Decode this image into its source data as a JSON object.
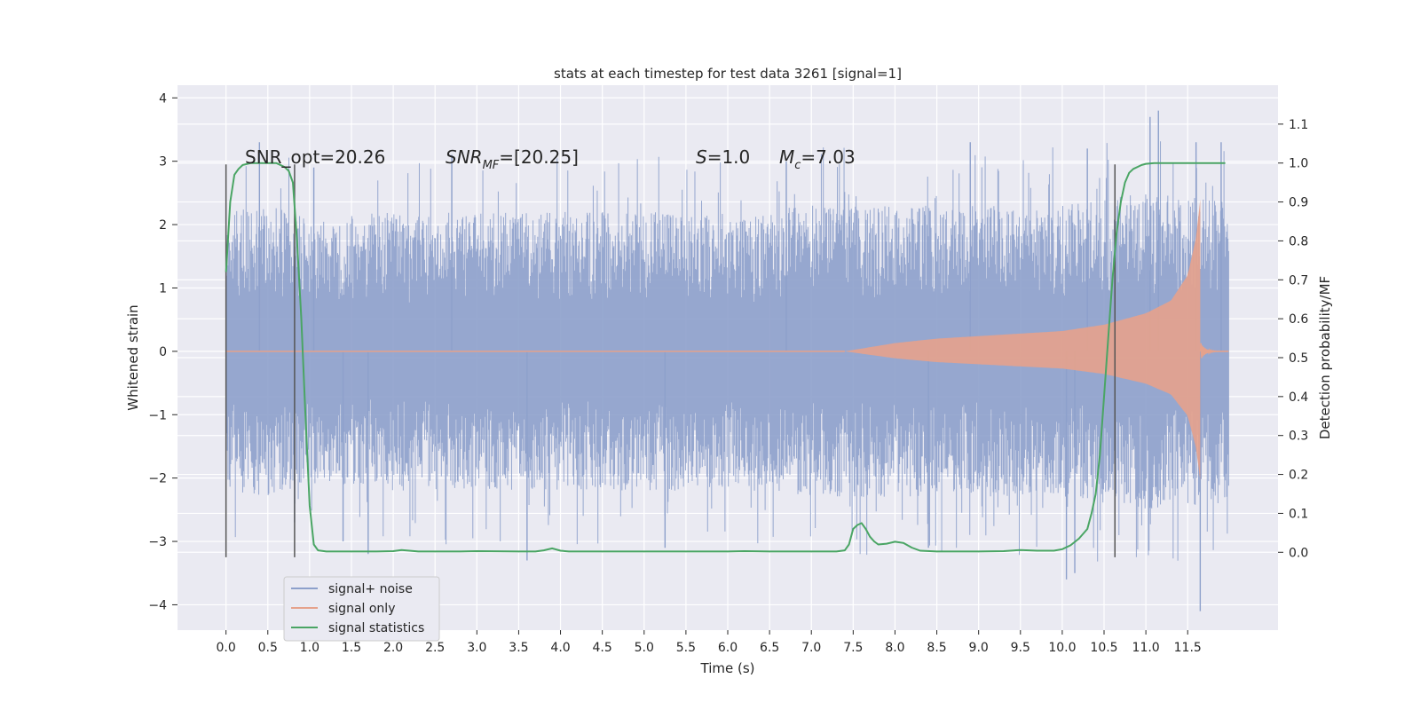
{
  "chart_data": {
    "type": "line",
    "title": "stats at each timestep for test data 3261 [signal=1]",
    "xlabel": "Time (s)",
    "ylabel": "Whitened strain",
    "y2label": "Detection probability/MF",
    "xlim": [
      -0.58,
      12.58
    ],
    "ylim": [
      -4.4,
      4.2
    ],
    "y2lim": [
      -0.2,
      1.2
    ],
    "grid": true,
    "legend_position": "lower-left",
    "x_ticks": [
      "0.0",
      "0.5",
      "1.0",
      "1.5",
      "2.0",
      "2.5",
      "3.0",
      "3.5",
      "4.0",
      "4.5",
      "5.0",
      "5.5",
      "6.0",
      "6.5",
      "7.0",
      "7.5",
      "8.0",
      "8.5",
      "9.0",
      "9.5",
      "10.0",
      "10.5",
      "11.0",
      "11.5"
    ],
    "y_ticks": [
      "4",
      "3",
      "2",
      "1",
      "0",
      "−1",
      "−2",
      "−3",
      "−4"
    ],
    "y_tick_values": [
      4,
      3,
      2,
      1,
      0,
      -1,
      -2,
      -3,
      -4
    ],
    "y2_ticks": [
      "1.1",
      "1.0",
      "0.9",
      "0.8",
      "0.7",
      "0.6",
      "0.5",
      "0.4",
      "0.3",
      "0.2",
      "0.1",
      "0.0"
    ],
    "y2_tick_values": [
      1.1,
      1.0,
      0.9,
      0.8,
      0.7,
      0.6,
      0.5,
      0.4,
      0.3,
      0.2,
      0.1,
      0.0
    ],
    "annotations": {
      "snr_opt": "SNR_opt=20.26",
      "snr_mf_pre": "SNR",
      "snr_mf_sub": "MF",
      "snr_mf_post": "=[20.25]",
      "s_sym": "S",
      "s_val": "=1.0",
      "mc_sym": "M",
      "mc_sub": "c",
      "mc_val": "=7.03"
    },
    "vertical_markers": [
      0.0,
      0.82,
      10.63
    ],
    "series": [
      {
        "name": "signal+ noise",
        "color": "#8da0cb",
        "kind": "noise",
        "x_range": [
          0.0,
          11.99
        ],
        "envelope": [
          [
            0.0,
            2.2
          ],
          [
            0.5,
            2.3
          ],
          [
            1.0,
            2.1
          ],
          [
            2.0,
            2.2
          ],
          [
            3.0,
            2.2
          ],
          [
            4.0,
            2.2
          ],
          [
            5.0,
            2.2
          ],
          [
            6.0,
            2.2
          ],
          [
            7.0,
            2.3
          ],
          [
            8.0,
            2.3
          ],
          [
            9.0,
            2.3
          ],
          [
            10.0,
            2.3
          ],
          [
            11.0,
            2.5
          ],
          [
            11.99,
            2.4
          ]
        ],
        "peaks": [
          [
            0.4,
            3.3
          ],
          [
            1.05,
            2.9
          ],
          [
            2.7,
            3.1
          ],
          [
            6.7,
            3.0
          ],
          [
            8.9,
            3.3
          ],
          [
            10.3,
            3.2
          ],
          [
            11.05,
            3.7
          ],
          [
            11.15,
            3.8
          ],
          [
            11.6,
            3.3
          ],
          [
            11.9,
            3.3
          ]
        ],
        "troughs": [
          [
            0.82,
            -2.7
          ],
          [
            1.4,
            -3.0
          ],
          [
            1.7,
            -3.2
          ],
          [
            3.6,
            -3.3
          ],
          [
            5.25,
            -3.1
          ],
          [
            8.4,
            -3.1
          ],
          [
            10.05,
            -3.6
          ],
          [
            10.15,
            -3.5
          ],
          [
            11.65,
            -4.1
          ]
        ]
      },
      {
        "name": "signal only",
        "color": "#e5a28c",
        "kind": "chirp",
        "start": 7.4,
        "peak_time": 11.65,
        "ringdown_end": 11.99,
        "amplitude_points": [
          [
            7.4,
            0.0
          ],
          [
            8.0,
            0.13
          ],
          [
            8.5,
            0.2
          ],
          [
            9.0,
            0.24
          ],
          [
            9.5,
            0.28
          ],
          [
            10.0,
            0.32
          ],
          [
            10.5,
            0.42
          ],
          [
            11.0,
            0.6
          ],
          [
            11.3,
            0.8
          ],
          [
            11.5,
            1.2
          ],
          [
            11.6,
            1.8
          ],
          [
            11.65,
            2.4
          ]
        ]
      },
      {
        "name": "signal statistics",
        "color": "#4aa564",
        "kind": "line",
        "axis": "right",
        "x": [
          0.0,
          0.05,
          0.1,
          0.15,
          0.2,
          0.3,
          0.4,
          0.5,
          0.6,
          0.7,
          0.75,
          0.8,
          0.85,
          0.9,
          0.95,
          1.0,
          1.05,
          1.1,
          1.2,
          1.5,
          1.8,
          2.0,
          2.1,
          2.3,
          2.8,
          3.0,
          3.5,
          3.7,
          3.8,
          3.9,
          4.0,
          4.1,
          5.0,
          5.5,
          6.0,
          6.2,
          6.5,
          7.0,
          7.3,
          7.4,
          7.45,
          7.5,
          7.55,
          7.6,
          7.65,
          7.7,
          7.75,
          7.8,
          7.9,
          8.0,
          8.1,
          8.2,
          8.3,
          8.5,
          9.0,
          9.3,
          9.5,
          9.7,
          9.9,
          10.0,
          10.1,
          10.2,
          10.3,
          10.35,
          10.4,
          10.45,
          10.5,
          10.55,
          10.6,
          10.65,
          10.7,
          10.75,
          10.8,
          10.85,
          10.9,
          10.95,
          11.0,
          11.1,
          11.3,
          11.5,
          11.7,
          11.95
        ],
        "y": [
          0.72,
          0.9,
          0.97,
          0.985,
          0.995,
          1.0,
          1.0,
          1.0,
          1.0,
          0.99,
          0.98,
          0.95,
          0.8,
          0.6,
          0.35,
          0.12,
          0.02,
          0.005,
          0.002,
          0.002,
          0.002,
          0.003,
          0.006,
          0.002,
          0.002,
          0.003,
          0.002,
          0.002,
          0.005,
          0.01,
          0.004,
          0.002,
          0.002,
          0.002,
          0.002,
          0.003,
          0.002,
          0.002,
          0.002,
          0.005,
          0.02,
          0.06,
          0.07,
          0.075,
          0.06,
          0.04,
          0.028,
          0.02,
          0.022,
          0.027,
          0.024,
          0.012,
          0.004,
          0.002,
          0.002,
          0.003,
          0.006,
          0.004,
          0.004,
          0.008,
          0.018,
          0.035,
          0.06,
          0.1,
          0.15,
          0.25,
          0.4,
          0.55,
          0.7,
          0.82,
          0.9,
          0.95,
          0.975,
          0.985,
          0.99,
          0.995,
          0.998,
          1.0,
          1.0,
          1.0,
          1.0,
          1.0
        ]
      }
    ]
  }
}
